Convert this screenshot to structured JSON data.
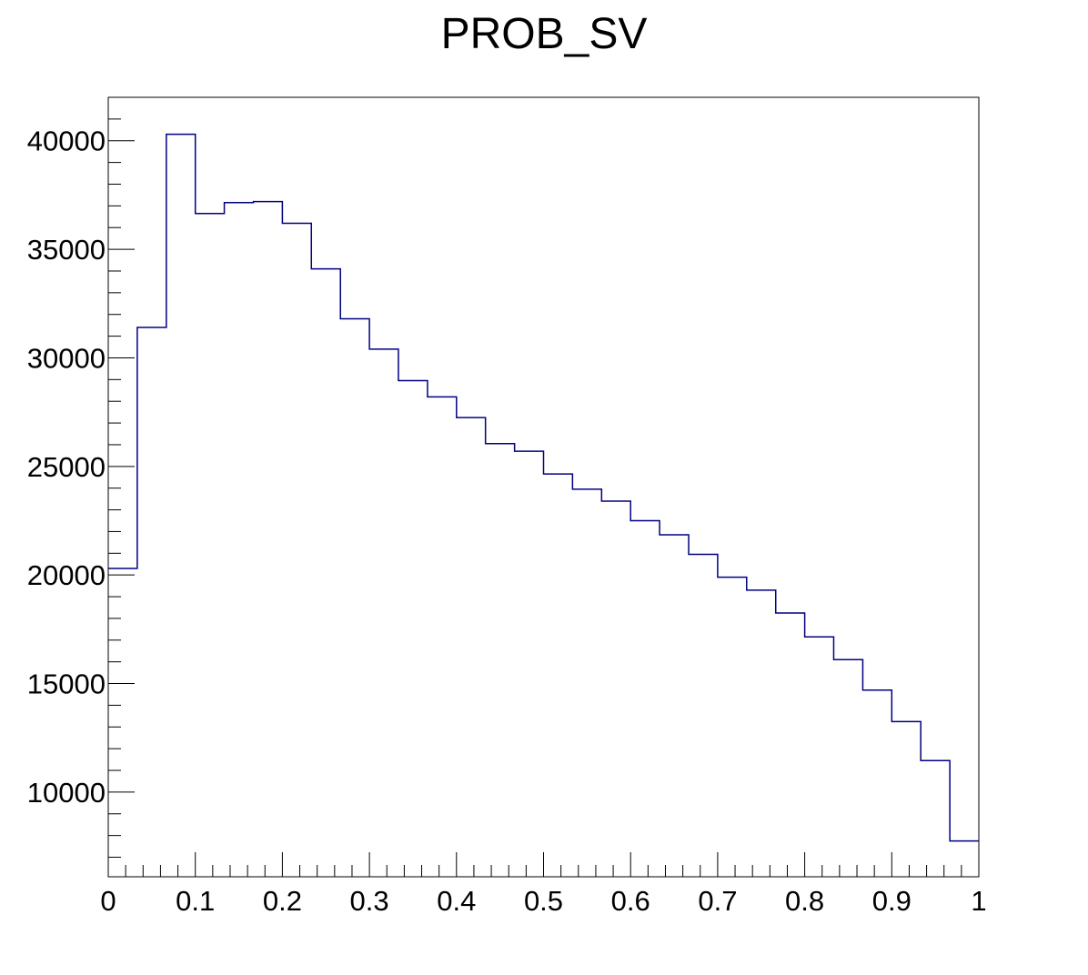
{
  "chart_data": {
    "type": "histogram",
    "title": "PROB_SV",
    "xlabel": "",
    "ylabel": "",
    "xlim": [
      0,
      1
    ],
    "ylim": [
      6100,
      42000
    ],
    "grid": false,
    "line_color": "#000080",
    "bin_edges": [
      0,
      0.0333,
      0.0667,
      0.1,
      0.1333,
      0.1667,
      0.2,
      0.2333,
      0.2667,
      0.3,
      0.3333,
      0.3667,
      0.4,
      0.4333,
      0.4667,
      0.5,
      0.5333,
      0.5667,
      0.6,
      0.6333,
      0.6667,
      0.7,
      0.7333,
      0.7667,
      0.8,
      0.8333,
      0.8667,
      0.9,
      0.9333,
      0.9667,
      1.0
    ],
    "values": [
      20300,
      31400,
      40300,
      36650,
      37150,
      37200,
      36200,
      34100,
      31800,
      30400,
      28950,
      28200,
      27250,
      26050,
      25700,
      24650,
      23950,
      23400,
      22500,
      21850,
      20950,
      19900,
      19300,
      18250,
      17150,
      16100,
      14700,
      13250,
      11450,
      7750
    ],
    "x_ticks": [
      0,
      0.1,
      0.2,
      0.3,
      0.4,
      0.5,
      0.6,
      0.7,
      0.8,
      0.9,
      1
    ],
    "x_tick_labels": [
      "0",
      "0.1",
      "0.2",
      "0.3",
      "0.4",
      "0.5",
      "0.6",
      "0.7",
      "0.8",
      "0.9",
      "1"
    ],
    "y_ticks": [
      10000,
      15000,
      20000,
      25000,
      30000,
      35000,
      40000
    ],
    "y_tick_labels": [
      "10000",
      "15000",
      "20000",
      "25000",
      "30000",
      "35000",
      "40000"
    ]
  }
}
